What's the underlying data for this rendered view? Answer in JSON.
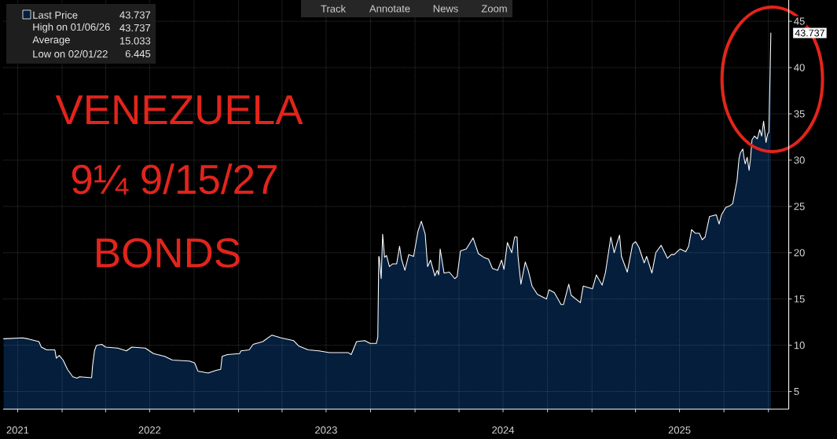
{
  "chart_data": {
    "type": "area",
    "x": [
      "2021-09-02",
      "2021-10-11",
      "2021-10-22",
      "2021-11-14",
      "2021-11-19",
      "2021-11-30",
      "2021-12-17",
      "2021-12-20",
      "2021-12-26",
      "2022-01-03",
      "2022-01-12",
      "2022-01-23",
      "2022-02-01",
      "2022-02-06",
      "2022-03-03",
      "2022-03-05",
      "2022-03-09",
      "2022-03-13",
      "2022-03-24",
      "2022-04-01",
      "2022-04-26",
      "2022-05-14",
      "2022-05-25",
      "2022-06-22",
      "2022-07-09",
      "2022-08-01",
      "2022-08-17",
      "2022-09-21",
      "2022-10-02",
      "2022-10-09",
      "2022-10-30",
      "2022-11-16",
      "2022-11-25",
      "2022-11-28",
      "2022-12-09",
      "2023-01-03",
      "2023-01-06",
      "2023-01-23",
      "2023-01-31",
      "2023-02-20",
      "2023-03-11",
      "2023-03-30",
      "2023-04-25",
      "2023-05-06",
      "2023-05-25",
      "2023-06-16",
      "2023-07-08",
      "2023-08-16",
      "2023-08-22",
      "2023-09-02",
      "2023-09-19",
      "2023-09-30",
      "2023-10-13",
      "2023-10-16",
      "2023-10-18",
      "2023-10-19",
      "2023-10-23",
      "2023-10-26",
      "2023-10-30",
      "2023-11-03",
      "2023-11-09",
      "2023-11-16",
      "2023-11-24",
      "2023-11-30",
      "2023-12-04",
      "2023-12-11",
      "2023-12-19",
      "2023-12-29",
      "2024-01-07",
      "2024-01-14",
      "2024-01-22",
      "2024-01-27",
      "2024-02-02",
      "2024-02-11",
      "2024-02-16",
      "2024-02-19",
      "2024-02-22",
      "2024-03-01",
      "2024-03-12",
      "2024-03-23",
      "2024-03-28",
      "2024-04-04",
      "2024-04-16",
      "2024-04-30",
      "2024-05-11",
      "2024-05-22",
      "2024-06-01",
      "2024-06-09",
      "2024-06-20",
      "2024-06-28",
      "2024-07-03",
      "2024-07-10",
      "2024-07-19",
      "2024-07-25",
      "2024-07-30",
      "2024-08-01",
      "2024-08-07",
      "2024-08-16",
      "2024-08-22",
      "2024-08-30",
      "2024-09-10",
      "2024-09-29",
      "2024-10-04",
      "2024-10-15",
      "2024-10-29",
      "2024-11-03",
      "2024-11-14",
      "2024-11-19",
      "2024-12-08",
      "2024-12-14",
      "2025-01-02",
      "2025-01-10",
      "2025-01-22",
      "2025-01-29",
      "2025-02-09",
      "2025-02-16",
      "2025-02-22",
      "2025-02-27",
      "2025-03-03",
      "2025-03-15",
      "2025-03-26",
      "2025-04-01",
      "2025-04-08",
      "2025-04-19",
      "2025-04-24",
      "2025-05-05",
      "2025-05-13",
      "2025-05-24",
      "2025-06-06",
      "2025-06-14",
      "2025-06-20",
      "2025-07-02",
      "2025-07-14",
      "2025-07-20",
      "2025-07-26",
      "2025-08-03",
      "2025-08-11",
      "2025-08-17",
      "2025-08-23",
      "2025-09-01",
      "2025-09-15",
      "2025-09-21",
      "2025-09-26",
      "2025-10-05",
      "2025-10-14",
      "2025-10-19",
      "2025-10-24",
      "2025-10-28",
      "2025-11-01",
      "2025-11-04",
      "2025-11-09",
      "2025-11-12",
      "2025-11-14",
      "2025-11-18",
      "2025-11-22",
      "2025-11-25",
      "2025-11-28",
      "2025-12-03",
      "2025-12-09",
      "2025-12-14",
      "2025-12-18",
      "2025-12-22",
      "2025-12-27",
      "2025-12-29",
      "2025-12-31",
      "2026-01-02",
      "2026-01-06"
    ],
    "series": [
      {
        "name": "Last Price",
        "color": "#041e3c",
        "values": [
          10.7,
          10.8,
          10.7,
          10.4,
          9.8,
          9.5,
          9.5,
          8.6,
          8.9,
          8.4,
          7.4,
          6.6,
          6.445,
          6.6,
          6.5,
          7.8,
          9.4,
          10.0,
          10.1,
          9.8,
          9.7,
          9.4,
          9.8,
          9.7,
          9.1,
          8.8,
          8.4,
          8.3,
          8.1,
          7.2,
          7.0,
          7.3,
          7.4,
          8.8,
          9.0,
          9.1,
          9.4,
          9.5,
          10.1,
          10.4,
          11.1,
          10.8,
          10.5,
          9.9,
          9.5,
          9.4,
          9.2,
          9.2,
          9.0,
          10.4,
          10.5,
          10.2,
          10.2,
          10.9,
          19.6,
          19.5,
          17.2,
          22.0,
          19.5,
          19.7,
          18.5,
          18.8,
          18.8,
          20.7,
          19.3,
          18.1,
          19.8,
          19.6,
          22.3,
          23.4,
          22.0,
          18.5,
          19.2,
          17.5,
          18.1,
          17.6,
          20.4,
          17.8,
          17.9,
          17.2,
          17.4,
          20.2,
          20.4,
          21.6,
          19.9,
          19.5,
          19.3,
          18.3,
          18.1,
          19.2,
          18.2,
          21.1,
          20.0,
          21.7,
          21.7,
          19.6,
          16.6,
          19.0,
          18.1,
          16.4,
          15.5,
          15.0,
          16.0,
          15.7,
          14.4,
          14.4,
          16.6,
          15.4,
          14.6,
          16.4,
          16.1,
          17.6,
          16.5,
          17.9,
          21.7,
          20.0,
          21.1,
          21.9,
          19.6,
          17.9,
          20.9,
          21.2,
          20.6,
          18.9,
          19.6,
          17.8,
          20.0,
          20.8,
          19.4,
          19.8,
          19.8,
          20.4,
          20.1,
          20.7,
          22.5,
          22.1,
          22.1,
          21.4,
          21.7,
          23.9,
          24.1,
          23.1,
          24.1,
          24.9,
          25.1,
          25.3,
          26.7,
          27.8,
          30.1,
          30.8,
          31.2,
          30.1,
          29.6,
          30.3,
          28.9,
          30.2,
          32.2,
          32.6,
          32.3,
          33.3,
          32.6,
          34.2,
          31.9,
          32.5,
          32.9,
          33.0,
          43.737
        ]
      }
    ],
    "xlim": [
      "2021-09-01",
      "2026-02-12"
    ],
    "ylim": [
      3.1,
      47.3
    ],
    "xticks": [
      {
        "value": "2021-10-01",
        "label": "2021"
      },
      {
        "value": "2022-01-01",
        "label": null
      },
      {
        "value": "2022-04-01",
        "label": null
      },
      {
        "value": "2022-07-01",
        "label": "2022"
      },
      {
        "value": "2022-10-01",
        "label": null
      },
      {
        "value": "2023-01-01",
        "label": null
      },
      {
        "value": "2023-04-01",
        "label": null
      },
      {
        "value": "2023-07-01",
        "label": "2023"
      },
      {
        "value": "2023-10-01",
        "label": null
      },
      {
        "value": "2024-01-01",
        "label": null
      },
      {
        "value": "2024-04-01",
        "label": null
      },
      {
        "value": "2024-07-01",
        "label": "2024"
      },
      {
        "value": "2024-10-01",
        "label": null
      },
      {
        "value": "2025-01-01",
        "label": null
      },
      {
        "value": "2025-04-01",
        "label": null
      },
      {
        "value": "2025-07-01",
        "label": "2025"
      },
      {
        "value": "2025-10-01",
        "label": null
      },
      {
        "value": "2026-01-01",
        "label": null
      }
    ],
    "yticks": [
      5,
      10,
      15,
      20,
      25,
      30,
      35,
      40,
      45
    ],
    "grid": true,
    "legend": "top left",
    "annotations": [
      "43.737",
      "High on 01/06/26",
      "43.737",
      "Average",
      "15.033",
      "Low on 02/01/22",
      "6.445",
      "43.737",
      "VENEZUELA",
      "9¼ 9/15/27",
      "BONDS",
      "Track",
      "Annotate",
      "News",
      "Zoom"
    ]
  }
}
